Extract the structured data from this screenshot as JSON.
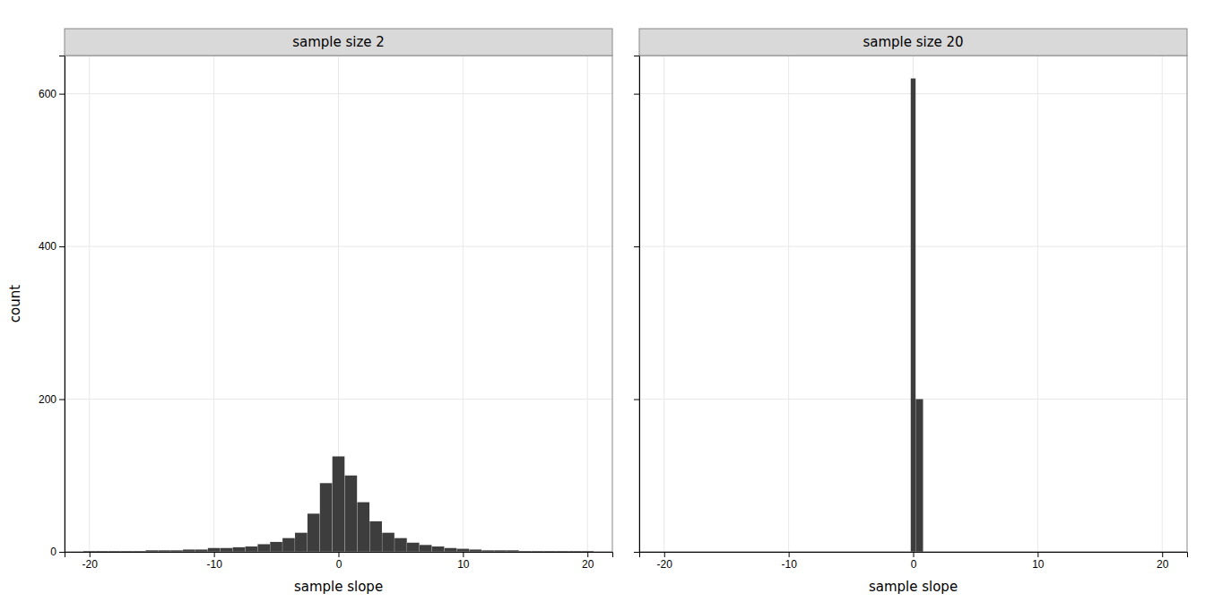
{
  "chart_data": [
    {
      "type": "histogram",
      "title": "sample size 2",
      "xlabel": "sample slope",
      "ylabel": "count",
      "bins": [
        -20.5,
        -19.5,
        -18.5,
        -17.5,
        -16.5,
        -15.5,
        -14.5,
        -13.5,
        -12.5,
        -11.5,
        -10.5,
        -9.5,
        -8.5,
        -7.5,
        -6.5,
        -5.5,
        -4.5,
        -3.5,
        -2.5,
        -1.5,
        -0.5,
        0.5,
        1.5,
        2.5,
        3.5,
        4.5,
        5.5,
        6.5,
        7.5,
        8.5,
        9.5,
        10.5,
        11.5,
        12.5,
        13.5,
        14.5,
        15.5,
        16.5,
        17.5,
        18.5,
        19.5,
        20.5
      ],
      "values": [
        1,
        1,
        1,
        1,
        1,
        2,
        2,
        2,
        3,
        3,
        5,
        5,
        6,
        7,
        10,
        13,
        18,
        25,
        50,
        90,
        125,
        100,
        65,
        40,
        25,
        18,
        12,
        9,
        7,
        5,
        4,
        3,
        2,
        2,
        2,
        1,
        1,
        1,
        1,
        1,
        1
      ],
      "color": "#3d3d3d",
      "xlim": [
        -22,
        22
      ],
      "ylim": [
        0,
        650
      ],
      "xticks": [
        -20,
        -10,
        0,
        10,
        20
      ],
      "yticks": [
        0,
        200,
        400,
        600
      ],
      "grid": true
    },
    {
      "type": "histogram",
      "title": "sample size 20",
      "xlabel": "sample slope",
      "bins": [
        -0.2,
        0.2,
        0.8
      ],
      "values": [
        620,
        200
      ],
      "color": "#3d3d3d",
      "xlim": [
        -22,
        22
      ],
      "ylim": [
        0,
        650
      ],
      "xticks": [
        -20,
        -10,
        0,
        10,
        20
      ],
      "yticks": [
        0,
        200,
        400,
        600
      ],
      "grid": true,
      "tick_labels": "x"
    }
  ]
}
